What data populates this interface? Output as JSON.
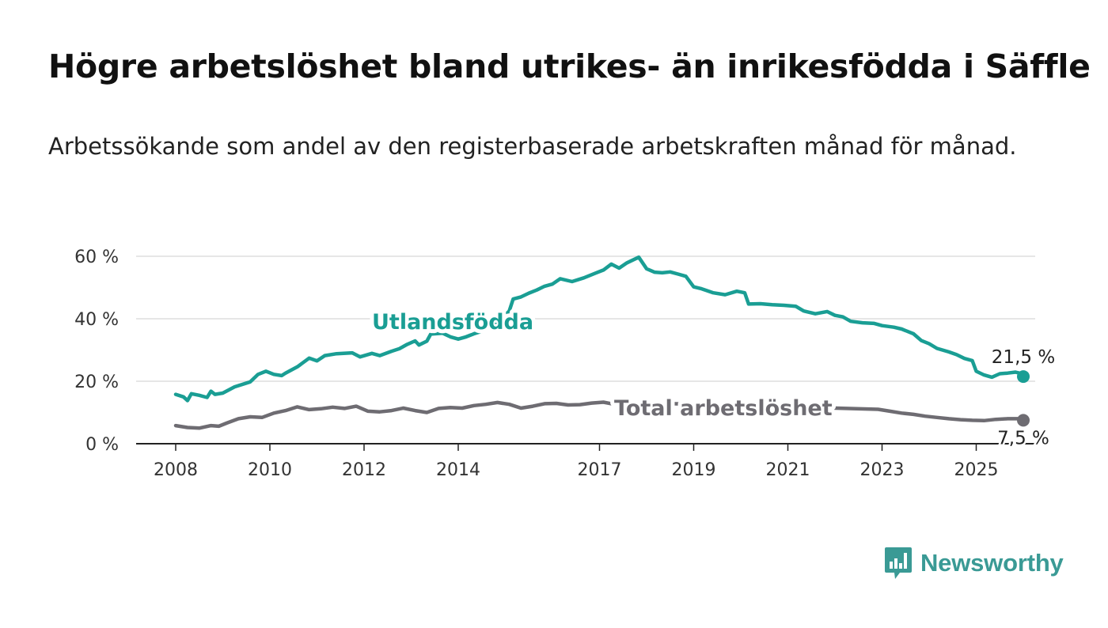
{
  "title": "Högre arbetslöshet bland utrikes- än inrikesfödda i Säffle",
  "subtitle": "Arbetssökande som andel av den registerbaserade arbetskraften månad för månad.",
  "logo": {
    "text": "Newsworthy",
    "icon": "bar-chart-bubble-icon"
  },
  "colors": {
    "foreign_born": "#1a9e94",
    "total": "#6e6c72",
    "grid": "#dddddd",
    "axis": "#222222"
  },
  "chart_data": {
    "type": "line",
    "title": "Högre arbetslöshet bland utrikes- än inrikesfödda i Säffle",
    "subtitle": "Arbetssökande som andel av den registerbaserade arbetskraften månad för månad.",
    "xlabel": "",
    "ylabel": "",
    "ylim": [
      0,
      60
    ],
    "xlim": [
      "2008-01",
      "2025-12"
    ],
    "y_ticks": [
      0,
      20,
      40,
      60
    ],
    "y_tick_labels": [
      "0 %",
      "20 %",
      "40 %",
      "60 %"
    ],
    "x_ticks": [
      "2008-01",
      "2010-01",
      "2012-01",
      "2014-01",
      "2017-01",
      "2019-01",
      "2021-01",
      "2023-01",
      "2025-01"
    ],
    "x_tick_labels": [
      "2008",
      "2010",
      "2012",
      "2014",
      "2017",
      "2019",
      "2021",
      "2023",
      "2025"
    ],
    "grid": true,
    "legend": "inline labels",
    "series": [
      {
        "name": "Utlandsfödda",
        "color": "#1a9e94",
        "end_label": "21,5 %",
        "points": [
          [
            "2008-01",
            15.8
          ],
          [
            "2008-03",
            15.0
          ],
          [
            "2008-04",
            13.8
          ],
          [
            "2008-05",
            16.0
          ],
          [
            "2008-07",
            15.5
          ],
          [
            "2008-09",
            14.8
          ],
          [
            "2008-10",
            16.8
          ],
          [
            "2008-11",
            15.8
          ],
          [
            "2009-01",
            16.2
          ],
          [
            "2009-04",
            18.2
          ],
          [
            "2009-08",
            19.8
          ],
          [
            "2009-10",
            22.2
          ],
          [
            "2009-12",
            23.2
          ],
          [
            "2010-02",
            22.2
          ],
          [
            "2010-04",
            21.8
          ],
          [
            "2010-05",
            22.6
          ],
          [
            "2010-08",
            24.6
          ],
          [
            "2010-11",
            27.4
          ],
          [
            "2011-01",
            26.5
          ],
          [
            "2011-03",
            28.2
          ],
          [
            "2011-06",
            28.8
          ],
          [
            "2011-10",
            29.1
          ],
          [
            "2011-12",
            27.8
          ],
          [
            "2012-03",
            28.9
          ],
          [
            "2012-05",
            28.2
          ],
          [
            "2012-08",
            29.6
          ],
          [
            "2012-10",
            30.4
          ],
          [
            "2012-12",
            31.8
          ],
          [
            "2013-02",
            32.9
          ],
          [
            "2013-03",
            31.6
          ],
          [
            "2013-05",
            32.8
          ],
          [
            "2013-06",
            35.1
          ],
          [
            "2013-09",
            35.4
          ],
          [
            "2013-11",
            34.2
          ],
          [
            "2014-01",
            33.5
          ],
          [
            "2014-03",
            34.2
          ],
          [
            "2014-05",
            35.2
          ],
          [
            "2014-07",
            36.0
          ],
          [
            "2014-09",
            37.0
          ],
          [
            "2014-12",
            39.8
          ],
          [
            "2015-02",
            42.5
          ],
          [
            "2015-03",
            46.3
          ],
          [
            "2015-05",
            47.0
          ],
          [
            "2015-07",
            48.2
          ],
          [
            "2015-09",
            49.2
          ],
          [
            "2015-11",
            50.4
          ],
          [
            "2016-01",
            51.1
          ],
          [
            "2016-03",
            52.8
          ],
          [
            "2016-06",
            51.9
          ],
          [
            "2016-09",
            53.1
          ],
          [
            "2016-12",
            54.6
          ],
          [
            "2017-02",
            55.6
          ],
          [
            "2017-04",
            57.5
          ],
          [
            "2017-06",
            56.2
          ],
          [
            "2017-08",
            57.9
          ],
          [
            "2017-11",
            59.7
          ],
          [
            "2018-01",
            56.0
          ],
          [
            "2018-03",
            54.9
          ],
          [
            "2018-05",
            54.7
          ],
          [
            "2018-07",
            55.0
          ],
          [
            "2018-09",
            54.3
          ],
          [
            "2018-11",
            53.6
          ],
          [
            "2019-01",
            50.2
          ],
          [
            "2019-03",
            49.6
          ],
          [
            "2019-06",
            48.3
          ],
          [
            "2019-09",
            47.7
          ],
          [
            "2019-12",
            48.8
          ],
          [
            "2020-02",
            48.3
          ],
          [
            "2020-03",
            44.7
          ],
          [
            "2020-06",
            44.8
          ],
          [
            "2020-09",
            44.5
          ],
          [
            "2020-12",
            44.3
          ],
          [
            "2021-03",
            44.0
          ],
          [
            "2021-05",
            42.5
          ],
          [
            "2021-08",
            41.6
          ],
          [
            "2021-11",
            42.3
          ],
          [
            "2022-01",
            41.1
          ],
          [
            "2022-03",
            40.6
          ],
          [
            "2022-05",
            39.2
          ],
          [
            "2022-08",
            38.7
          ],
          [
            "2022-11",
            38.5
          ],
          [
            "2023-01",
            37.8
          ],
          [
            "2023-04",
            37.3
          ],
          [
            "2023-06",
            36.7
          ],
          [
            "2023-09",
            35.2
          ],
          [
            "2023-11",
            33.0
          ],
          [
            "2024-01",
            32.0
          ],
          [
            "2024-03",
            30.5
          ],
          [
            "2024-06",
            29.4
          ],
          [
            "2024-08",
            28.5
          ],
          [
            "2024-10",
            27.3
          ],
          [
            "2024-12",
            26.6
          ],
          [
            "2025-01",
            23.2
          ],
          [
            "2025-03",
            22.0
          ],
          [
            "2025-05",
            21.3
          ],
          [
            "2025-07",
            22.4
          ],
          [
            "2025-09",
            22.6
          ],
          [
            "2025-11",
            22.9
          ],
          [
            "2025-12",
            22.6
          ],
          [
            "2026-01",
            21.5
          ]
        ]
      },
      {
        "name": "Total arbetslöshet",
        "color": "#6e6c72",
        "end_label": "7,5 %",
        "points": [
          [
            "2008-01",
            5.8
          ],
          [
            "2008-04",
            5.2
          ],
          [
            "2008-07",
            5.0
          ],
          [
            "2008-10",
            5.8
          ],
          [
            "2008-12",
            5.6
          ],
          [
            "2009-02",
            6.6
          ],
          [
            "2009-05",
            8.0
          ],
          [
            "2009-08",
            8.6
          ],
          [
            "2009-11",
            8.4
          ],
          [
            "2010-02",
            9.8
          ],
          [
            "2010-05",
            10.6
          ],
          [
            "2010-08",
            11.8
          ],
          [
            "2010-11",
            10.9
          ],
          [
            "2011-02",
            11.2
          ],
          [
            "2011-05",
            11.7
          ],
          [
            "2011-08",
            11.3
          ],
          [
            "2011-11",
            12.0
          ],
          [
            "2012-02",
            10.4
          ],
          [
            "2012-05",
            10.2
          ],
          [
            "2012-08",
            10.6
          ],
          [
            "2012-11",
            11.4
          ],
          [
            "2013-02",
            10.6
          ],
          [
            "2013-05",
            10.0
          ],
          [
            "2013-08",
            11.3
          ],
          [
            "2013-11",
            11.6
          ],
          [
            "2014-02",
            11.4
          ],
          [
            "2014-05",
            12.2
          ],
          [
            "2014-08",
            12.6
          ],
          [
            "2014-11",
            13.2
          ],
          [
            "2015-02",
            12.6
          ],
          [
            "2015-05",
            11.4
          ],
          [
            "2015-08",
            12.0
          ],
          [
            "2015-11",
            12.8
          ],
          [
            "2016-02",
            12.9
          ],
          [
            "2016-05",
            12.4
          ],
          [
            "2016-08",
            12.5
          ],
          [
            "2016-11",
            13.0
          ],
          [
            "2017-02",
            13.3
          ],
          [
            "2017-04",
            12.8
          ],
          [
            "2017-06",
            12.6
          ],
          [
            "2017-09",
            12.9
          ],
          [
            "2017-12",
            13.3
          ],
          [
            "2018-02",
            13.0
          ],
          [
            "2022-12",
            11.0
          ],
          [
            "2023-03",
            10.4
          ],
          [
            "2023-06",
            9.8
          ],
          [
            "2023-09",
            9.4
          ],
          [
            "2023-12",
            8.8
          ],
          [
            "2024-03",
            8.4
          ],
          [
            "2024-06",
            8.0
          ],
          [
            "2024-09",
            7.7
          ],
          [
            "2024-12",
            7.5
          ],
          [
            "2025-03",
            7.4
          ],
          [
            "2025-06",
            7.8
          ],
          [
            "2025-09",
            8.0
          ],
          [
            "2025-12",
            8.0
          ],
          [
            "2026-01",
            7.5
          ]
        ]
      }
    ]
  }
}
